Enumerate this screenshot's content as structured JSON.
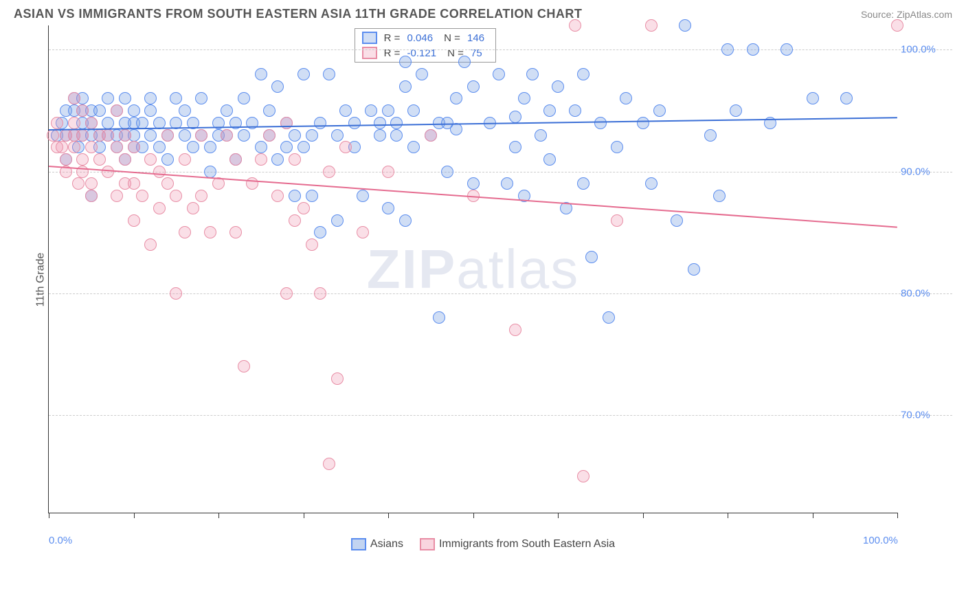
{
  "header": {
    "title": "ASIAN VS IMMIGRANTS FROM SOUTH EASTERN ASIA 11TH GRADE CORRELATION CHART",
    "source": "Source: ZipAtlas.com"
  },
  "chart": {
    "type": "scatter",
    "watermark": "ZIPatlas",
    "background_color": "#ffffff",
    "grid_color": "#cccccc",
    "axis_color": "#333333",
    "y_axis_label": "11th Grade",
    "label_fontsize": 16,
    "title_fontsize": 18,
    "xlim": [
      0,
      100
    ],
    "ylim": [
      62,
      102
    ],
    "x_ticks_minor": [
      0,
      10,
      20,
      30,
      40,
      50,
      60,
      70,
      80,
      90,
      100
    ],
    "x_tick_labels": [
      {
        "pos": 0,
        "label": "0.0%"
      },
      {
        "pos": 100,
        "label": "100.0%"
      }
    ],
    "y_ticks": [
      {
        "pos": 70,
        "label": "70.0%"
      },
      {
        "pos": 80,
        "label": "80.0%"
      },
      {
        "pos": 90,
        "label": "90.0%"
      },
      {
        "pos": 100,
        "label": "100.0%"
      }
    ],
    "series": [
      {
        "name": "Asians",
        "color_fill": "rgba(120, 160, 225, 0.35)",
        "color_stroke": "#5b8def",
        "line_color": "#3b6fd6",
        "marker_radius": 9,
        "stats": {
          "R": "0.046",
          "N": "146"
        },
        "trend": {
          "x0": 0,
          "y0": 93.5,
          "x1": 100,
          "y1": 94.5
        },
        "points": [
          [
            1,
            93
          ],
          [
            1.5,
            94
          ],
          [
            2,
            93
          ],
          [
            2,
            95
          ],
          [
            2,
            91
          ],
          [
            3,
            93
          ],
          [
            3,
            95
          ],
          [
            3,
            96
          ],
          [
            3.5,
            92
          ],
          [
            4,
            93
          ],
          [
            4,
            94
          ],
          [
            4,
            95
          ],
          [
            4,
            96
          ],
          [
            5,
            93
          ],
          [
            5,
            94
          ],
          [
            5,
            95
          ],
          [
            5,
            88
          ],
          [
            6,
            93
          ],
          [
            6,
            95
          ],
          [
            6,
            92
          ],
          [
            7,
            94
          ],
          [
            7,
            96
          ],
          [
            7,
            93
          ],
          [
            8,
            93
          ],
          [
            8,
            95
          ],
          [
            8,
            92
          ],
          [
            9,
            94
          ],
          [
            9,
            96
          ],
          [
            9,
            93
          ],
          [
            9,
            91
          ],
          [
            10,
            92
          ],
          [
            10,
            93
          ],
          [
            10,
            94
          ],
          [
            10,
            95
          ],
          [
            11,
            92
          ],
          [
            11,
            94
          ],
          [
            12,
            93
          ],
          [
            12,
            95
          ],
          [
            12,
            96
          ],
          [
            13,
            92
          ],
          [
            13,
            94
          ],
          [
            14,
            93
          ],
          [
            14,
            91
          ],
          [
            15,
            94
          ],
          [
            15,
            96
          ],
          [
            16,
            93
          ],
          [
            16,
            95
          ],
          [
            17,
            92
          ],
          [
            17,
            94
          ],
          [
            18,
            93
          ],
          [
            18,
            96
          ],
          [
            19,
            90
          ],
          [
            19,
            92
          ],
          [
            20,
            94
          ],
          [
            20,
            93
          ],
          [
            21,
            95
          ],
          [
            21,
            93
          ],
          [
            22,
            94
          ],
          [
            22,
            91
          ],
          [
            23,
            96
          ],
          [
            23,
            93
          ],
          [
            24,
            94
          ],
          [
            25,
            92
          ],
          [
            25,
            98
          ],
          [
            26,
            93
          ],
          [
            26,
            95
          ],
          [
            27,
            97
          ],
          [
            27,
            91
          ],
          [
            28,
            92
          ],
          [
            28,
            94
          ],
          [
            29,
            88
          ],
          [
            29,
            93
          ],
          [
            30,
            92
          ],
          [
            30,
            98
          ],
          [
            31,
            93
          ],
          [
            31,
            88
          ],
          [
            32,
            85
          ],
          [
            32,
            94
          ],
          [
            33,
            98
          ],
          [
            34,
            86
          ],
          [
            34,
            93
          ],
          [
            35,
            95
          ],
          [
            36,
            92
          ],
          [
            36,
            94
          ],
          [
            37,
            88
          ],
          [
            38,
            95
          ],
          [
            39,
            94
          ],
          [
            39,
            93
          ],
          [
            40,
            87
          ],
          [
            40,
            95
          ],
          [
            41,
            94
          ],
          [
            41,
            93
          ],
          [
            42,
            86
          ],
          [
            42,
            97
          ],
          [
            42,
            99
          ],
          [
            43,
            95
          ],
          [
            43,
            92
          ],
          [
            44,
            98
          ],
          [
            45,
            93
          ],
          [
            46,
            78
          ],
          [
            46,
            94
          ],
          [
            47,
            90
          ],
          [
            47,
            94
          ],
          [
            48,
            96
          ],
          [
            48,
            93.5
          ],
          [
            49,
            99
          ],
          [
            50,
            89
          ],
          [
            50,
            97
          ],
          [
            52,
            94
          ],
          [
            53,
            98
          ],
          [
            54,
            89
          ],
          [
            55,
            92
          ],
          [
            55,
            94.5
          ],
          [
            56,
            96
          ],
          [
            56,
            88
          ],
          [
            57,
            98
          ],
          [
            58,
            93
          ],
          [
            59,
            91
          ],
          [
            59,
            95
          ],
          [
            60,
            97
          ],
          [
            61,
            87
          ],
          [
            62,
            95
          ],
          [
            63,
            89
          ],
          [
            63,
            98
          ],
          [
            64,
            83
          ],
          [
            65,
            94
          ],
          [
            66,
            78
          ],
          [
            67,
            92
          ],
          [
            68,
            96
          ],
          [
            70,
            94
          ],
          [
            71,
            89
          ],
          [
            72,
            95
          ],
          [
            74,
            86
          ],
          [
            75,
            102
          ],
          [
            76,
            82
          ],
          [
            78,
            93
          ],
          [
            79,
            88
          ],
          [
            80,
            100
          ],
          [
            81,
            95
          ],
          [
            83,
            100
          ],
          [
            85,
            94
          ],
          [
            87,
            100
          ],
          [
            90,
            96
          ],
          [
            94,
            96
          ]
        ]
      },
      {
        "name": "Immigrants from South Eastern Asia",
        "color_fill": "rgba(240, 150, 175, 0.3)",
        "color_stroke": "#e88da5",
        "line_color": "#e56b8f",
        "marker_radius": 9,
        "stats": {
          "R": "-0.121",
          "N": "75"
        },
        "trend": {
          "x0": 0,
          "y0": 90.5,
          "x1": 100,
          "y1": 85.5
        },
        "points": [
          [
            0.5,
            93
          ],
          [
            1,
            92
          ],
          [
            1,
            94
          ],
          [
            1.5,
            92
          ],
          [
            2,
            93
          ],
          [
            2,
            91
          ],
          [
            2,
            90
          ],
          [
            3,
            92
          ],
          [
            3,
            94
          ],
          [
            3,
            96
          ],
          [
            3,
            93
          ],
          [
            3.5,
            89
          ],
          [
            4,
            91
          ],
          [
            4,
            93
          ],
          [
            4,
            95
          ],
          [
            4,
            90
          ],
          [
            5,
            92
          ],
          [
            5,
            89
          ],
          [
            5,
            94
          ],
          [
            5,
            88
          ],
          [
            6,
            91
          ],
          [
            6,
            93
          ],
          [
            7,
            90
          ],
          [
            7,
            93
          ],
          [
            8,
            88
          ],
          [
            8,
            92
          ],
          [
            8,
            95
          ],
          [
            9,
            89
          ],
          [
            9,
            91
          ],
          [
            9,
            93
          ],
          [
            10,
            86
          ],
          [
            10,
            89
          ],
          [
            10,
            92
          ],
          [
            11,
            88
          ],
          [
            12,
            84
          ],
          [
            12,
            91
          ],
          [
            13,
            90
          ],
          [
            13,
            87
          ],
          [
            14,
            89
          ],
          [
            14,
            93
          ],
          [
            15,
            80
          ],
          [
            15,
            88
          ],
          [
            16,
            85
          ],
          [
            16,
            91
          ],
          [
            17,
            87
          ],
          [
            18,
            93
          ],
          [
            18,
            88
          ],
          [
            19,
            85
          ],
          [
            20,
            89
          ],
          [
            21,
            93
          ],
          [
            22,
            85
          ],
          [
            22,
            91
          ],
          [
            23,
            74
          ],
          [
            24,
            89
          ],
          [
            25,
            91
          ],
          [
            26,
            93
          ],
          [
            27,
            88
          ],
          [
            28,
            80
          ],
          [
            28,
            94
          ],
          [
            29,
            86
          ],
          [
            29,
            91
          ],
          [
            30,
            87
          ],
          [
            31,
            84
          ],
          [
            32,
            80
          ],
          [
            33,
            66
          ],
          [
            33,
            90
          ],
          [
            34,
            73
          ],
          [
            35,
            92
          ],
          [
            37,
            85
          ],
          [
            40,
            90
          ],
          [
            45,
            93
          ],
          [
            50,
            88
          ],
          [
            55,
            77
          ],
          [
            62,
            102
          ],
          [
            63,
            65
          ],
          [
            67,
            86
          ],
          [
            71,
            102
          ],
          [
            100,
            102
          ]
        ]
      }
    ],
    "bottom_legend": [
      {
        "label": "Asians",
        "fill": "rgba(120, 160, 225, 0.45)",
        "stroke": "#5b8def"
      },
      {
        "label": "Immigrants from South Eastern Asia",
        "fill": "rgba(240, 150, 175, 0.4)",
        "stroke": "#e88da5"
      }
    ]
  }
}
